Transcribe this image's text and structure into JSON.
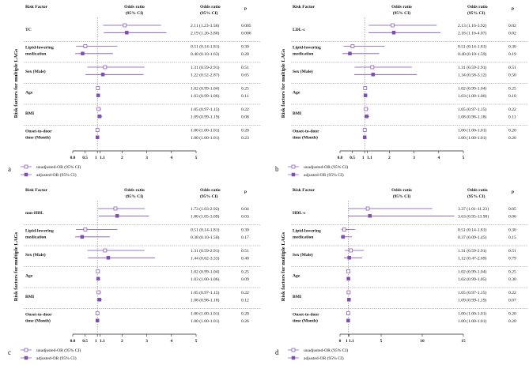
{
  "chart_data": [
    {
      "type": "forest",
      "panel_label": "a",
      "header": {
        "risk_factor": "Risk Factor",
        "or_line1": "Odds ratio",
        "or_line2": "(95% CI)",
        "p": "p"
      },
      "ylabel": "Risk factors for multiple LAGs",
      "xlim": [
        0,
        5
      ],
      "ticks": [
        0,
        0.5,
        1,
        1.1,
        2,
        3,
        4,
        5
      ],
      "tick_labels": [
        "0.0",
        "0.5",
        "1",
        "1.1",
        "2",
        "3",
        "4",
        "5"
      ],
      "reference_line": 1,
      "legend": {
        "unadjusted": "unadjusted-OR (95% CI)",
        "adjusted": "adjusted-OR (95% CI)"
      },
      "factors": [
        {
          "name_lines": [
            "TC"
          ],
          "rows": [
            {
              "kind": "unadjusted",
              "or": 2.11,
              "lo": 1.23,
              "hi": 3.58,
              "text": "2.11 (1.23-3.58)",
              "p": "0.005"
            },
            {
              "kind": "adjusted",
              "or": 2.19,
              "lo": 1.26,
              "hi": 3.8,
              "text": "2.19 (1.26-3.80)",
              "p": "0.006"
            }
          ]
        },
        {
          "name_lines": [
            "Lipid-lowering",
            "medication"
          ],
          "rows": [
            {
              "kind": "unadjusted",
              "or": 0.51,
              "lo": 0.14,
              "hi": 1.81,
              "text": "0.51 (0.14-1.81)",
              "p": "0.30"
            },
            {
              "kind": "adjusted",
              "or": 0.4,
              "lo": 0.1,
              "hi": 1.63,
              "text": "0.40 (0.10-1.63)",
              "p": "0.20"
            }
          ]
        },
        {
          "name_lines": [
            "Sex (Male)"
          ],
          "rows": [
            {
              "kind": "unadjusted",
              "or": 1.31,
              "lo": 0.59,
              "hi": 2.91,
              "text": "1.31 (0.59-2.91)",
              "p": "0.51"
            },
            {
              "kind": "adjusted",
              "or": 1.22,
              "lo": 0.52,
              "hi": 2.87,
              "text": "1.22 (0.52-2.87)",
              "p": "0.65"
            }
          ]
        },
        {
          "name_lines": [
            "Age"
          ],
          "rows": [
            {
              "kind": "unadjusted",
              "or": 1.02,
              "lo": 0.99,
              "hi": 1.04,
              "text": "1.02 (0.99-1.04)",
              "p": "0.25"
            },
            {
              "kind": "adjusted",
              "or": 1.03,
              "lo": 0.99,
              "hi": 1.06,
              "text": "1.03 (0.99-1.06)",
              "p": "0.11"
            }
          ]
        },
        {
          "name_lines": [
            "BMI"
          ],
          "rows": [
            {
              "kind": "unadjusted",
              "or": 1.05,
              "lo": 0.97,
              "hi": 1.15,
              "text": "1.05 (0.97-1.15)",
              "p": "0.22"
            },
            {
              "kind": "adjusted",
              "or": 1.09,
              "lo": 0.99,
              "hi": 1.19,
              "text": "1.09 (0.99-1.19)",
              "p": "0.08"
            }
          ]
        },
        {
          "name_lines": [
            "Onset-to-door",
            "time (Month)"
          ],
          "rows": [
            {
              "kind": "unadjusted",
              "or": 1.0,
              "lo": 1.0,
              "hi": 1.01,
              "text": "1.00 (1.00-1.01)",
              "p": "0.20"
            },
            {
              "kind": "adjusted",
              "or": 1.0,
              "lo": 1.0,
              "hi": 1.01,
              "text": "1.00 (1.00-1.01)",
              "p": "0.23"
            }
          ]
        }
      ]
    },
    {
      "type": "forest",
      "panel_label": "b",
      "header": {
        "risk_factor": "Risk Factor",
        "or_line1": "Odds ratio",
        "or_line2": "(95% CI)",
        "p": "p"
      },
      "ylabel": "Risk factors for multiple LAGs",
      "xlim": [
        0,
        5
      ],
      "ticks": [
        0,
        0.5,
        1,
        1.1,
        2,
        3,
        4,
        5
      ],
      "tick_labels": [
        "0.0",
        "0.5",
        "1",
        "1.1",
        "2",
        "3",
        "4",
        "5"
      ],
      "reference_line": 1,
      "legend": {
        "unadjusted": "unadjusted-OR (95% CI)",
        "adjusted": "adjusted-OR (95% CI)"
      },
      "factors": [
        {
          "name_lines": [
            "LDL-c"
          ],
          "rows": [
            {
              "kind": "unadjusted",
              "or": 2.13,
              "lo": 1.16,
              "hi": 3.92,
              "text": "2.13 (1.16-3.92)",
              "p": "0.02"
            },
            {
              "kind": "adjusted",
              "or": 2.18,
              "lo": 1.16,
              "hi": 4.07,
              "text": "2.18 (1.16-4.07)",
              "p": "0.02"
            }
          ]
        },
        {
          "name_lines": [
            "Lipid-lowering",
            "medication"
          ],
          "rows": [
            {
              "kind": "unadjusted",
              "or": 0.51,
              "lo": 0.14,
              "hi": 1.81,
              "text": "0.51 (0.14-1.81)",
              "p": "0.30"
            },
            {
              "kind": "adjusted",
              "or": 0.4,
              "lo": 0.1,
              "hi": 1.59,
              "text": "0.40 (0.10-1.59)",
              "p": "0.19"
            }
          ]
        },
        {
          "name_lines": [
            "Sex (Male)"
          ],
          "rows": [
            {
              "kind": "unadjusted",
              "or": 1.31,
              "lo": 0.59,
              "hi": 2.91,
              "text": "1.31 (0.59-2.91)",
              "p": "0.51"
            },
            {
              "kind": "adjusted",
              "or": 1.34,
              "lo": 0.58,
              "hi": 3.12,
              "text": "1.34 (0.58-3.12)",
              "p": "0.50"
            }
          ]
        },
        {
          "name_lines": [
            "Age"
          ],
          "rows": [
            {
              "kind": "unadjusted",
              "or": 1.02,
              "lo": 0.99,
              "hi": 1.04,
              "text": "1.02 (0.99-1.04)",
              "p": "0.25"
            },
            {
              "kind": "adjusted",
              "or": 1.03,
              "lo": 1.0,
              "hi": 1.06,
              "text": "1.03 (1.00-1.06)",
              "p": "0.10"
            }
          ]
        },
        {
          "name_lines": [
            "BMI"
          ],
          "rows": [
            {
              "kind": "unadjusted",
              "or": 1.05,
              "lo": 0.97,
              "hi": 1.15,
              "text": "1.05 (0.97-1.15)",
              "p": "0.22"
            },
            {
              "kind": "adjusted",
              "or": 1.08,
              "lo": 0.98,
              "hi": 1.18,
              "text": "1.08 (0.98-1.18)",
              "p": "0.11"
            }
          ]
        },
        {
          "name_lines": [
            "Onset-to-door",
            "time (Month)"
          ],
          "rows": [
            {
              "kind": "unadjusted",
              "or": 1.0,
              "lo": 1.0,
              "hi": 1.01,
              "text": "1.00 (1.00-1.01)",
              "p": "0.20"
            },
            {
              "kind": "adjusted",
              "or": 1.0,
              "lo": 1.0,
              "hi": 1.01,
              "text": "1.00 (1.00-1.01)",
              "p": "0.26"
            }
          ]
        }
      ]
    },
    {
      "type": "forest",
      "panel_label": "c",
      "header": {
        "risk_factor": "Risk Factor",
        "or_line1": "Odds ratio",
        "or_line2": "(95% CI)",
        "p": "p"
      },
      "ylabel": "Risk factors for multiple LAGs",
      "xlim": [
        0,
        5
      ],
      "ticks": [
        0,
        0.5,
        1,
        1.1,
        2,
        3,
        4,
        5
      ],
      "tick_labels": [
        "0.0",
        "0.5",
        "1",
        "1.1",
        "2",
        "3",
        "4",
        "5"
      ],
      "reference_line": 1,
      "legend": {
        "unadjusted": "unadjusted-OR (95% CI)",
        "adjusted": "adjusted-OR (95% CI)"
      },
      "factors": [
        {
          "name_lines": [
            "non-HDL"
          ],
          "rows": [
            {
              "kind": "unadjusted",
              "or": 1.73,
              "lo": 1.03,
              "hi": 2.92,
              "text": "1.73 (1.03-2.92)",
              "p": "0.04"
            },
            {
              "kind": "adjusted",
              "or": 1.8,
              "lo": 1.05,
              "hi": 3.09,
              "text": "1.80 (1.05-3.09)",
              "p": "0.03"
            }
          ]
        },
        {
          "name_lines": [
            "Lipid-lowering",
            "medication"
          ],
          "rows": [
            {
              "kind": "unadjusted",
              "or": 0.51,
              "lo": 0.14,
              "hi": 1.81,
              "text": "0.51 (0.14-1.81)",
              "p": "0.30"
            },
            {
              "kind": "adjusted",
              "or": 0.38,
              "lo": 0.1,
              "hi": 1.5,
              "text": "0.38 (0.10-1.50)",
              "p": "0.17"
            }
          ]
        },
        {
          "name_lines": [
            "Sex (Male)"
          ],
          "rows": [
            {
              "kind": "unadjusted",
              "or": 1.31,
              "lo": 0.59,
              "hi": 2.91,
              "text": "1.31 (0.59-2.91)",
              "p": "0.51"
            },
            {
              "kind": "adjusted",
              "or": 1.44,
              "lo": 0.62,
              "hi": 3.33,
              "text": "1.44 (0.62-3.33)",
              "p": "0.40"
            }
          ]
        },
        {
          "name_lines": [
            "Age"
          ],
          "rows": [
            {
              "kind": "unadjusted",
              "or": 1.02,
              "lo": 0.99,
              "hi": 1.04,
              "text": "1.02 (0.99-1.04)",
              "p": "0.25"
            },
            {
              "kind": "adjusted",
              "or": 1.03,
              "lo": 1.0,
              "hi": 1.06,
              "text": "1.03 (1.00-1.06)",
              "p": "0.09"
            }
          ]
        },
        {
          "name_lines": [
            "BMI"
          ],
          "rows": [
            {
              "kind": "unadjusted",
              "or": 1.05,
              "lo": 0.97,
              "hi": 1.15,
              "text": "1.05 (0.97-1.15)",
              "p": "0.22"
            },
            {
              "kind": "adjusted",
              "or": 1.08,
              "lo": 0.98,
              "hi": 1.18,
              "text": "1.08 (0.98-1.18)",
              "p": "0.12"
            }
          ]
        },
        {
          "name_lines": [
            "Onset-to-door",
            "time (Month)"
          ],
          "rows": [
            {
              "kind": "unadjusted",
              "or": 1.0,
              "lo": 1.0,
              "hi": 1.01,
              "text": "1.00 (1.00-1.01)",
              "p": "0.20"
            },
            {
              "kind": "adjusted",
              "or": 1.0,
              "lo": 1.0,
              "hi": 1.01,
              "text": "1.00 (1.00-1.01)",
              "p": "0.26"
            }
          ]
        }
      ]
    },
    {
      "type": "forest",
      "panel_label": "d",
      "header": {
        "risk_factor": "Risk Factor",
        "or_line1": "Odds ratio",
        "or_line2": "(95% CI)",
        "p": "p"
      },
      "ylabel": "Risk factors for multiple LAGs",
      "xlim": [
        0,
        15
      ],
      "ticks": [
        0,
        1,
        1.1,
        5,
        10,
        15
      ],
      "tick_labels": [
        "0",
        "1",
        "1.1",
        "5",
        "10",
        "15"
      ],
      "reference_line": 1,
      "legend": {
        "unadjusted": "unadjusted-OR (95% CI)",
        "adjusted": "adjusted-OR (95% CI)"
      },
      "factors": [
        {
          "name_lines": [
            "HDL-c"
          ],
          "rows": [
            {
              "kind": "unadjusted",
              "or": 3.37,
              "lo": 1.01,
              "hi": 11.23,
              "text": "3.37 (1.01-11.23)",
              "p": "0.05"
            },
            {
              "kind": "adjusted",
              "or": 3.63,
              "or_note": "",
              "lo": 0.95,
              "hi": 13.9,
              "text": "3.63 (0.95-13.90)",
              "p": "0.06"
            }
          ]
        },
        {
          "name_lines": [
            "Lipid-lowering",
            "medication"
          ],
          "rows": [
            {
              "kind": "unadjusted",
              "or": 0.51,
              "lo": 0.14,
              "hi": 1.81,
              "text": "0.51 (0.14-1.81)",
              "p": "0.30"
            },
            {
              "kind": "adjusted",
              "or": 0.37,
              "lo": 0.09,
              "hi": 1.45,
              "text": "0.37 (0.09-1.45)",
              "p": "0.15"
            }
          ]
        },
        {
          "name_lines": [
            "Sex (Male)"
          ],
          "rows": [
            {
              "kind": "unadjusted",
              "or": 1.31,
              "lo": 0.59,
              "hi": 2.91,
              "text": "1.31 (0.59-2.91)",
              "p": "0.51"
            },
            {
              "kind": "adjusted",
              "or": 1.12,
              "lo": 0.47,
              "hi": 2.69,
              "text": "1.12 (0.47-2.69)",
              "p": "0.79"
            }
          ]
        },
        {
          "name_lines": [
            "Age"
          ],
          "rows": [
            {
              "kind": "unadjusted",
              "or": 1.02,
              "lo": 0.99,
              "hi": 1.04,
              "text": "1.02 (0.99-1.04)",
              "p": "0.25"
            },
            {
              "kind": "adjusted",
              "or": 1.02,
              "lo": 0.99,
              "hi": 1.05,
              "text": "1.02 (0.99-1.05)",
              "p": "0.30"
            }
          ]
        },
        {
          "name_lines": [
            "BMI"
          ],
          "rows": [
            {
              "kind": "unadjusted",
              "or": 1.05,
              "lo": 0.97,
              "hi": 1.15,
              "text": "1.05 (0.97-1.15)",
              "p": "0.22"
            },
            {
              "kind": "adjusted",
              "or": 1.09,
              "lo": 0.99,
              "hi": 1.19,
              "text": "1.09 (0.99-1.19)",
              "p": "0.07"
            }
          ]
        },
        {
          "name_lines": [
            "Onset-to-door",
            "time (Month)"
          ],
          "rows": [
            {
              "kind": "unadjusted",
              "or": 1.0,
              "lo": 1.0,
              "hi": 1.01,
              "text": "1.00 (1.00-1.01)",
              "p": "0.20"
            },
            {
              "kind": "adjusted",
              "or": 1.0,
              "lo": 1.0,
              "hi": 1.01,
              "text": "1.00 (1.00-1.01)",
              "p": "0.20"
            }
          ]
        }
      ]
    }
  ],
  "colors": {
    "marker": "#7e4fb0",
    "ci_line": "#7e4fb0",
    "divider": "#888888",
    "reference": "#777777"
  }
}
